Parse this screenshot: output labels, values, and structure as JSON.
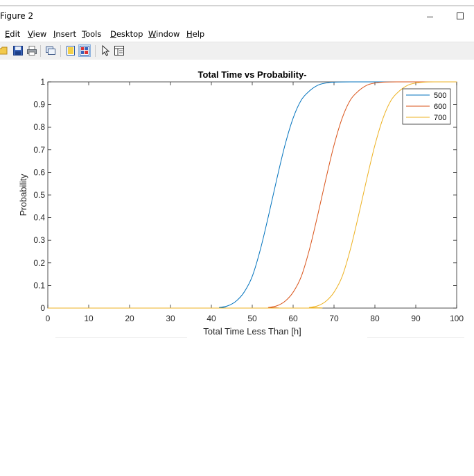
{
  "window": {
    "title": "Figure 2"
  },
  "menu": {
    "items": [
      {
        "label": "Edit",
        "underline": "E",
        "rest": "dit"
      },
      {
        "label": "View",
        "underline": "V",
        "rest": "iew"
      },
      {
        "label": "Insert",
        "underline": "I",
        "rest": "nsert"
      },
      {
        "label": "Tools",
        "underline": "T",
        "rest": "ools"
      },
      {
        "label": "Desktop",
        "underline": "D",
        "rest": "esktop"
      },
      {
        "label": "Window",
        "underline": "W",
        "rest": "indow"
      },
      {
        "label": "Help",
        "underline": "H",
        "rest": "elp"
      }
    ]
  },
  "toolbar": {
    "buttons": [
      "open-file-icon",
      "save-icon",
      "print-icon",
      "link-icon",
      "hide-plot-tools-icon",
      "show-plot-tools-icon",
      "edit-plot-arrow-icon",
      "property-editor-icon"
    ]
  },
  "colors": {
    "series_500": "#0072BD",
    "series_600": "#D95319",
    "series_700": "#EDB120"
  },
  "chart_data": {
    "type": "line",
    "title": "Total Time vs Probability-",
    "xlabel": "Total Time Less Than [h]",
    "ylabel": "Probability",
    "xlim": [
      0,
      100
    ],
    "ylim": [
      0,
      1
    ],
    "x_ticks": [
      "0",
      "10",
      "20",
      "30",
      "40",
      "50",
      "60",
      "70",
      "80",
      "90",
      "100"
    ],
    "y_ticks": [
      "0",
      "0.1",
      "0.2",
      "0.3",
      "0.4",
      "0.5",
      "0.6",
      "0.7",
      "0.8",
      "0.9",
      "1"
    ],
    "grid": false,
    "legend_position": "top-right",
    "series": [
      {
        "name": "500",
        "color": "#0072BD",
        "x": [
          0,
          40,
          42,
          44,
          46,
          48,
          50,
          52,
          54,
          56,
          58,
          60,
          62,
          64,
          66,
          68,
          70,
          75,
          80,
          100
        ],
        "y": [
          0,
          0,
          0.003,
          0.01,
          0.03,
          0.07,
          0.14,
          0.26,
          0.41,
          0.57,
          0.72,
          0.84,
          0.92,
          0.96,
          0.985,
          0.995,
          0.999,
          1,
          1,
          1
        ]
      },
      {
        "name": "600",
        "color": "#D95319",
        "x": [
          0,
          52,
          54,
          56,
          58,
          60,
          62,
          64,
          66,
          68,
          70,
          72,
          74,
          76,
          78,
          80,
          82,
          86,
          90,
          100
        ],
        "y": [
          0,
          0,
          0.003,
          0.01,
          0.03,
          0.07,
          0.14,
          0.26,
          0.41,
          0.57,
          0.72,
          0.84,
          0.92,
          0.96,
          0.985,
          0.995,
          0.999,
          1,
          1,
          1
        ]
      },
      {
        "name": "700",
        "color": "#EDB120",
        "x": [
          0,
          62,
          64,
          66,
          68,
          70,
          72,
          74,
          76,
          78,
          80,
          82,
          84,
          86,
          88,
          90,
          92,
          95,
          98,
          100
        ],
        "y": [
          0,
          0,
          0.003,
          0.01,
          0.03,
          0.07,
          0.14,
          0.26,
          0.41,
          0.57,
          0.72,
          0.84,
          0.92,
          0.96,
          0.985,
          0.995,
          0.999,
          1,
          1,
          1
        ]
      }
    ]
  }
}
